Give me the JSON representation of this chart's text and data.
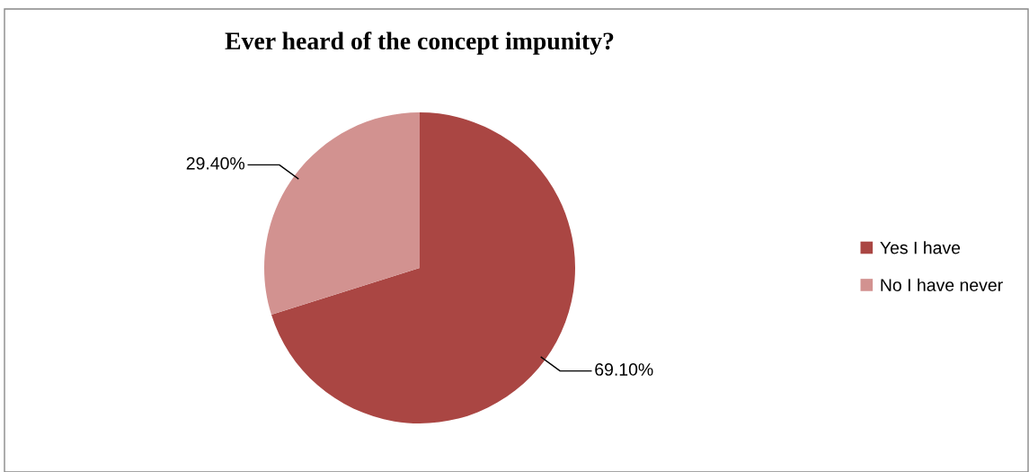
{
  "chart_data": {
    "type": "pie",
    "title": "Ever heard of the concept impunity?",
    "categories": [
      "Yes I have",
      "No I have never"
    ],
    "values": [
      69.1,
      29.4
    ],
    "value_labels": [
      "69.10%",
      "29.40%"
    ],
    "colors": [
      "#aa4643",
      "#d29290"
    ],
    "legend": "right"
  }
}
